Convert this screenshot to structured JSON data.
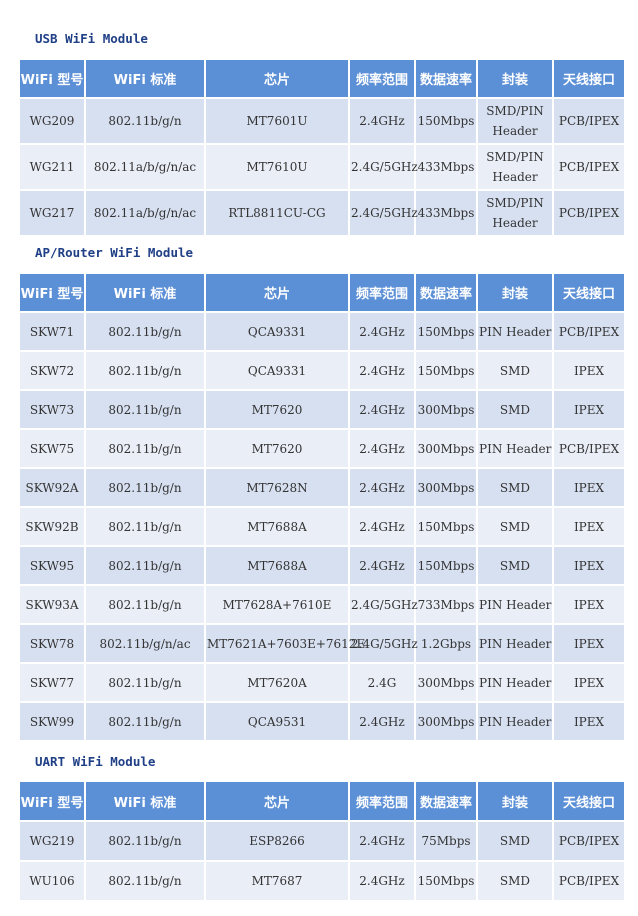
{
  "headers": [
    "WiFi 型号",
    "WiFi 标准",
    "芯片",
    "频率范围",
    "数据速率",
    "封装",
    "天线接口"
  ],
  "sections": [
    {
      "title": "USB WiFi Module",
      "rows": [
        [
          "WG209",
          "802.11b/g/n",
          "MT7601U",
          "2.4GHz",
          "150Mbps",
          "SMD/PIN Header",
          "PCB/IPEX"
        ],
        [
          "WG211",
          "802.11a/b/g/n/ac",
          "MT7610U",
          "2.4G/5GHz",
          "433Mbps",
          "SMD/PIN Header",
          "PCB/IPEX"
        ],
        [
          "WG217",
          "802.11a/b/g/n/ac",
          "RTL8811CU-CG",
          "2.4G/5GHz",
          "433Mbps",
          "SMD/PIN Header",
          "PCB/IPEX"
        ]
      ]
    },
    {
      "title": "AP/Router WiFi Module",
      "rows": [
        [
          "SKW71",
          "802.11b/g/n",
          "QCA9331",
          "2.4GHz",
          "150Mbps",
          "PIN Header",
          "PCB/IPEX"
        ],
        [
          "SKW72",
          "802.11b/g/n",
          "QCA9331",
          "2.4GHz",
          "150Mbps",
          "SMD",
          "IPEX"
        ],
        [
          "SKW73",
          "802.11b/g/n",
          "MT7620",
          "2.4GHz",
          "300Mbps",
          "SMD",
          "IPEX"
        ],
        [
          "SKW75",
          "802.11b/g/n",
          "MT7620",
          "2.4GHz",
          "300Mbps",
          "PIN Header",
          "PCB/IPEX"
        ],
        [
          "SKW92A",
          "802.11b/g/n",
          "MT7628N",
          "2.4GHz",
          "300Mbps",
          "SMD",
          "IPEX"
        ],
        [
          "SKW92B",
          "802.11b/g/n",
          "MT7688A",
          "2.4GHz",
          "150Mbps",
          "SMD",
          "IPEX"
        ],
        [
          "SKW95",
          "802.11b/g/n",
          "MT7688A",
          "2.4GHz",
          "150Mbps",
          "SMD",
          "IPEX"
        ],
        [
          "SKW93A",
          "802.11b/g/n",
          "MT7628A+7610E",
          "2.4G/5GHz",
          "733Mbps",
          "PIN Header",
          "IPEX"
        ],
        [
          "SKW78",
          "802.11b/g/n/ac",
          "MT7621A+7603E+7612E",
          "2.4G/5GHz",
          "1.2Gbps",
          "PIN Header",
          "IPEX"
        ],
        [
          "SKW77",
          "802.11b/g/n",
          "MT7620A",
          "2.4G",
          "300Mbps",
          "PIN Header",
          "IPEX"
        ],
        [
          "SKW99",
          "802.11b/g/n",
          "QCA9531",
          "2.4GHz",
          "300Mbps",
          "PIN Header",
          "IPEX"
        ]
      ]
    },
    {
      "title": "UART WiFi Module",
      "rows": [
        [
          "WG219",
          "802.11b/g/n",
          "ESP8266",
          "2.4GHz",
          "75Mbps",
          "SMD",
          "PCB/IPEX"
        ],
        [
          "WU106",
          "802.11b/g/n",
          "MT7687",
          "2.4GHz",
          "150Mbps",
          "SMD",
          "PCB/IPEX"
        ]
      ]
    }
  ]
}
